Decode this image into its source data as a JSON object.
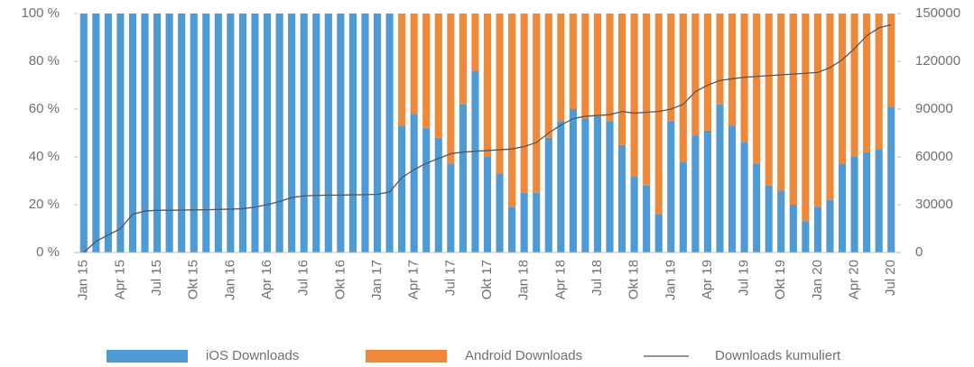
{
  "chart_data": {
    "type": "stacked-bar-line",
    "categories": [
      "Jan 15",
      null,
      null,
      "Apr 15",
      null,
      null,
      "Jul 15",
      null,
      null,
      "Okt 15",
      null,
      null,
      "Jan 16",
      null,
      null,
      "Apr 16",
      null,
      null,
      "Jul 16",
      null,
      null,
      "Okt 16",
      null,
      null,
      "Jan 17",
      null,
      null,
      "Apr 17",
      null,
      null,
      "Jul 17",
      null,
      null,
      "Okt 17",
      null,
      null,
      "Jan 18",
      null,
      null,
      "Apr 18",
      null,
      null,
      "Jul 18",
      null,
      null,
      "Okt 18",
      null,
      null,
      "Jan 19",
      null,
      null,
      "Apr 19",
      null,
      null,
      "Jul 19",
      null,
      null,
      "Okt 19",
      null,
      null,
      "Jan 20",
      null,
      null,
      "Apr 20",
      null,
      null,
      "Jul 20"
    ],
    "series": [
      {
        "name": "iOS Downloads",
        "color": "#4e9ad4",
        "values": [
          100,
          100,
          100,
          100,
          100,
          100,
          100,
          100,
          100,
          100,
          100,
          100,
          100,
          100,
          100,
          100,
          100,
          100,
          100,
          100,
          100,
          100,
          100,
          100,
          100,
          100,
          53,
          58,
          52,
          48,
          37,
          62,
          76,
          40,
          33,
          19,
          25,
          25,
          48,
          55,
          60,
          56,
          57,
          55,
          45,
          32,
          28,
          16,
          55,
          38,
          49,
          51,
          62,
          53,
          46,
          37,
          28,
          26,
          20,
          13,
          19,
          22,
          37,
          40,
          42,
          43,
          61
        ]
      },
      {
        "name": "Android Downloads",
        "color": "#f0883a",
        "values": [
          0,
          0,
          0,
          0,
          0,
          0,
          0,
          0,
          0,
          0,
          0,
          0,
          0,
          0,
          0,
          0,
          0,
          0,
          0,
          0,
          0,
          0,
          0,
          0,
          0,
          0,
          47,
          42,
          48,
          52,
          63,
          38,
          24,
          60,
          67,
          81,
          75,
          75,
          52,
          45,
          40,
          44,
          43,
          45,
          55,
          68,
          72,
          84,
          45,
          62,
          51,
          49,
          38,
          47,
          54,
          63,
          72,
          74,
          80,
          87,
          81,
          78,
          63,
          60,
          58,
          57,
          39
        ]
      },
      {
        "name": "Downloads kumuliert",
        "color": "#555555",
        "axis": "y2",
        "values": [
          0,
          7000,
          11000,
          15000,
          24000,
          26000,
          26500,
          26500,
          26600,
          26700,
          26800,
          27000,
          27200,
          27500,
          28500,
          30000,
          32000,
          34500,
          35500,
          35800,
          36000,
          36000,
          36200,
          36300,
          36500,
          38000,
          47000,
          52000,
          56000,
          59000,
          62000,
          63000,
          63500,
          64000,
          64500,
          65000,
          66500,
          69000,
          75000,
          80000,
          84000,
          85500,
          86000,
          86500,
          88500,
          87500,
          88000,
          88500,
          90000,
          93000,
          101000,
          105000,
          108000,
          109000,
          110000,
          110500,
          111000,
          111500,
          112000,
          112500,
          113000,
          116000,
          121000,
          128000,
          136000,
          141000,
          143000
        ]
      }
    ],
    "ylim": [
      0,
      100
    ],
    "yticks": [
      {
        "value": 0,
        "label": "0 %"
      },
      {
        "value": 20,
        "label": "20 %"
      },
      {
        "value": 40,
        "label": "40 %"
      },
      {
        "value": 60,
        "label": "60 %"
      },
      {
        "value": 80,
        "label": "80 %"
      },
      {
        "value": 100,
        "label": "100 %"
      }
    ],
    "y2lim": [
      0,
      150000
    ],
    "y2ticks": [
      0,
      30000,
      60000,
      90000,
      120000,
      150000
    ],
    "legend": "bottom"
  }
}
